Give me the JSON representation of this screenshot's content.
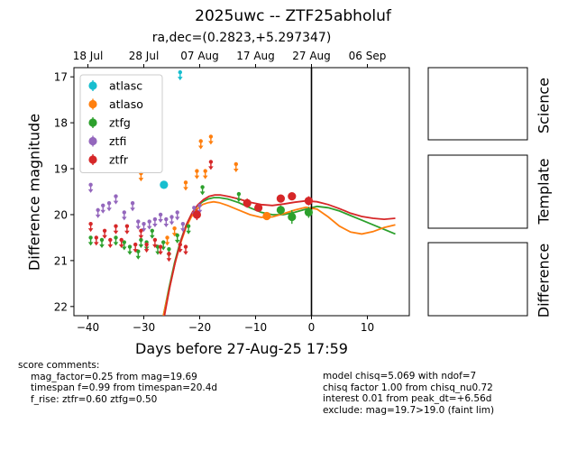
{
  "title": "2025uwc -- ZTF25abholuf",
  "subtitle": "ra,dec=(0.2823,+5.297347)",
  "panel_labels": [
    "Science",
    "Template",
    "Difference"
  ],
  "score_comments": {
    "header": "score comments:",
    "lines": [
      "mag_factor=0.25 from mag=19.69",
      "timespan f=0.99 from timespan=20.4d",
      "f_rise: ztfr=0.60 ztfg=0.50"
    ]
  },
  "model_info": {
    "lines": [
      "model chisq=5.069 with ndof=7",
      "chisq factor 1.00 from chisq_nu0.72",
      "interest 0.01 from peak_dt=+6.56d",
      "exclude: mag=19.7>19.0 (faint lim)"
    ]
  },
  "chart_data": {
    "type": "scatter",
    "title": "2025uwc -- ZTF25abholuf",
    "xlabel": "Days before 27-Aug-25 17:59",
    "ylabel": "Difference magnitude",
    "xlim": [
      -42.5,
      17.5
    ],
    "ylim": [
      22.2,
      16.8
    ],
    "y_inverted": true,
    "xticks": [
      -40,
      -30,
      -20,
      -10,
      0,
      10
    ],
    "yticks": [
      17,
      18,
      19,
      20,
      21,
      22
    ],
    "top_axis_ticks": [
      {
        "x": -40,
        "label": "18 Jul"
      },
      {
        "x": -30,
        "label": "28 Jul"
      },
      {
        "x": -20,
        "label": "07 Aug"
      },
      {
        "x": -10,
        "label": "17 Aug"
      },
      {
        "x": 0,
        "label": "27 Aug"
      },
      {
        "x": 10,
        "label": "06 Sep"
      }
    ],
    "vline_x": 0,
    "legend_position": "upper-left",
    "series": [
      {
        "name": "atlasc",
        "color": "#17becf",
        "detections": [
          {
            "x": -26.4,
            "y": 19.35,
            "err": 0.08
          }
        ],
        "upper_limits": [
          {
            "x": -23.5,
            "y": 16.9
          }
        ]
      },
      {
        "name": "atlaso",
        "color": "#ff7f0e",
        "detections": [
          {
            "x": -8.0,
            "y": 20.03,
            "err": 0.05
          }
        ],
        "upper_limits": [
          {
            "x": -30.5,
            "y": 19.1
          },
          {
            "x": -25.8,
            "y": 20.5
          },
          {
            "x": -24.5,
            "y": 20.3
          },
          {
            "x": -22.5,
            "y": 19.3
          },
          {
            "x": -20.5,
            "y": 19.05
          },
          {
            "x": -19.8,
            "y": 18.4
          },
          {
            "x": -19.0,
            "y": 19.05
          },
          {
            "x": -18.0,
            "y": 18.3
          },
          {
            "x": -13.5,
            "y": 18.9
          }
        ]
      },
      {
        "name": "ztfg",
        "color": "#2ca02c",
        "detections": [
          {
            "x": -5.5,
            "y": 19.9,
            "err": 0.1
          },
          {
            "x": -3.5,
            "y": 20.05,
            "err": 0.15
          },
          {
            "x": -0.5,
            "y": 19.95,
            "err": 0.12
          }
        ],
        "upper_limits": [
          {
            "x": -39.5,
            "y": 20.5
          },
          {
            "x": -37.5,
            "y": 20.55
          },
          {
            "x": -35.0,
            "y": 20.5
          },
          {
            "x": -33.5,
            "y": 20.6
          },
          {
            "x": -32.5,
            "y": 20.7
          },
          {
            "x": -31.0,
            "y": 20.8
          },
          {
            "x": -30.5,
            "y": 20.55
          },
          {
            "x": -29.5,
            "y": 20.6
          },
          {
            "x": -28.5,
            "y": 20.35
          },
          {
            "x": -27.5,
            "y": 20.7
          },
          {
            "x": -26.5,
            "y": 20.6
          },
          {
            "x": -25.5,
            "y": 20.75
          },
          {
            "x": -24.0,
            "y": 20.45
          },
          {
            "x": -22.0,
            "y": 20.25
          },
          {
            "x": -19.5,
            "y": 19.4
          },
          {
            "x": -13.0,
            "y": 19.55
          }
        ]
      },
      {
        "name": "ztfi",
        "color": "#9467bd",
        "detections": [],
        "upper_limits": [
          {
            "x": -39.5,
            "y": 19.35
          },
          {
            "x": -38.2,
            "y": 19.9
          },
          {
            "x": -37.3,
            "y": 19.8
          },
          {
            "x": -36.2,
            "y": 19.75
          },
          {
            "x": -35.0,
            "y": 19.6
          },
          {
            "x": -33.5,
            "y": 19.95
          },
          {
            "x": -32.0,
            "y": 19.75
          },
          {
            "x": -31.0,
            "y": 20.15
          },
          {
            "x": -30.0,
            "y": 20.2
          },
          {
            "x": -29.0,
            "y": 20.15
          },
          {
            "x": -28.0,
            "y": 20.1
          },
          {
            "x": -27.0,
            "y": 20.0
          },
          {
            "x": -26.0,
            "y": 20.1
          },
          {
            "x": -25.0,
            "y": 20.05
          },
          {
            "x": -24.0,
            "y": 19.95
          },
          {
            "x": -23.0,
            "y": 20.2
          },
          {
            "x": -21.0,
            "y": 19.85
          },
          {
            "x": -20.0,
            "y": 19.8
          }
        ]
      },
      {
        "name": "ztfr",
        "color": "#d62728",
        "detections": [
          {
            "x": -20.5,
            "y": 20.0,
            "err": 0.12
          },
          {
            "x": -11.5,
            "y": 19.75,
            "err": 0.1
          },
          {
            "x": -9.5,
            "y": 19.85,
            "err": 0.08
          },
          {
            "x": -5.5,
            "y": 19.65,
            "err": 0.08
          },
          {
            "x": -3.5,
            "y": 19.6,
            "err": 0.08
          },
          {
            "x": -0.5,
            "y": 19.7,
            "err": 0.1
          }
        ],
        "upper_limits": [
          {
            "x": -39.5,
            "y": 20.2
          },
          {
            "x": -38.5,
            "y": 20.5
          },
          {
            "x": -37.0,
            "y": 20.35
          },
          {
            "x": -36.0,
            "y": 20.55
          },
          {
            "x": -35.0,
            "y": 20.25
          },
          {
            "x": -34.0,
            "y": 20.55
          },
          {
            "x": -33.0,
            "y": 20.25
          },
          {
            "x": -31.5,
            "y": 20.65
          },
          {
            "x": -30.5,
            "y": 20.35
          },
          {
            "x": -29.5,
            "y": 20.65
          },
          {
            "x": -28.0,
            "y": 20.55
          },
          {
            "x": -27.0,
            "y": 20.7
          },
          {
            "x": -25.5,
            "y": 20.85
          },
          {
            "x": -23.5,
            "y": 20.65
          },
          {
            "x": -22.5,
            "y": 20.7
          },
          {
            "x": -18.0,
            "y": 18.85
          }
        ]
      }
    ],
    "model_curves": [
      {
        "name": "ztfg",
        "color": "#2ca02c",
        "x": [
          -26.5,
          -25.5,
          -24.5,
          -23.5,
          -22.5,
          -21.5,
          -20.5,
          -19.5,
          -18.5,
          -17.5,
          -16.5,
          -15.0,
          -13.0,
          -11.0,
          -9.0,
          -7.0,
          -5.0,
          -3.0,
          -1.0,
          1.0,
          3.0,
          5.0,
          7.0,
          9.0,
          11.0,
          13.0,
          15.0
        ],
        "y": [
          22.2,
          21.6,
          21.05,
          20.6,
          20.25,
          20.0,
          19.82,
          19.72,
          19.66,
          19.63,
          19.63,
          19.66,
          19.74,
          19.85,
          19.95,
          20.0,
          20.0,
          19.95,
          19.88,
          19.82,
          19.85,
          19.92,
          20.02,
          20.12,
          20.22,
          20.32,
          20.42
        ]
      },
      {
        "name": "atlaso",
        "color": "#ff7f0e",
        "x": [
          -26.5,
          -25.5,
          -24.5,
          -23.5,
          -22.5,
          -21.5,
          -20.5,
          -19.5,
          -18.5,
          -17.5,
          -16.5,
          -15.0,
          -13.0,
          -11.0,
          -9.0,
          -7.0,
          -5.0,
          -3.0,
          -1.0,
          1.0,
          3.0,
          5.0,
          7.0,
          9.0,
          11.0,
          13.0,
          15.0
        ],
        "y": [
          22.2,
          21.65,
          21.1,
          20.65,
          20.3,
          20.05,
          19.88,
          19.78,
          19.74,
          19.72,
          19.74,
          19.8,
          19.9,
          20.0,
          20.06,
          20.05,
          19.98,
          19.9,
          19.84,
          19.88,
          20.05,
          20.25,
          20.38,
          20.42,
          20.37,
          20.28,
          20.22
        ]
      },
      {
        "name": "ztfr",
        "color": "#d62728",
        "x": [
          -26.3,
          -25.3,
          -24.3,
          -23.3,
          -22.3,
          -21.3,
          -20.3,
          -19.3,
          -18.3,
          -17.3,
          -16.3,
          -15.0,
          -13.0,
          -11.0,
          -9.0,
          -7.0,
          -5.0,
          -3.0,
          -1.0,
          1.0,
          3.0,
          5.0,
          7.0,
          9.0,
          11.0,
          13.0,
          15.0
        ],
        "y": [
          22.2,
          21.55,
          21.0,
          20.55,
          20.2,
          19.95,
          19.78,
          19.67,
          19.6,
          19.57,
          19.57,
          19.6,
          19.66,
          19.73,
          19.78,
          19.8,
          19.77,
          19.73,
          19.7,
          19.72,
          19.78,
          19.87,
          19.97,
          20.04,
          20.08,
          20.1,
          20.08
        ]
      }
    ]
  }
}
